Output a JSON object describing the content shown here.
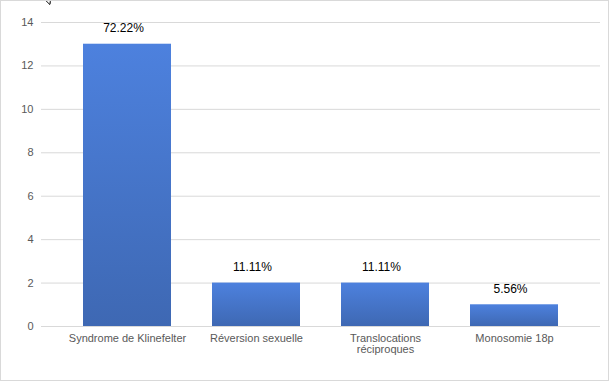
{
  "chart_data": {
    "type": "bar",
    "categories": [
      "Syndrome de Klinefelter",
      "Réversion sexuelle",
      "Translocations réciproques",
      "Monosomie 18p"
    ],
    "values": [
      13,
      2,
      2,
      1
    ],
    "value_labels": [
      "72.22%",
      "11.11%",
      "11.11%",
      "5.56%"
    ],
    "data_labels": true,
    "color": "#4472c4",
    "ylim": [
      0,
      14
    ],
    "yticks": [
      0,
      2,
      4,
      6,
      8,
      10,
      12,
      14
    ],
    "grid": true
  }
}
